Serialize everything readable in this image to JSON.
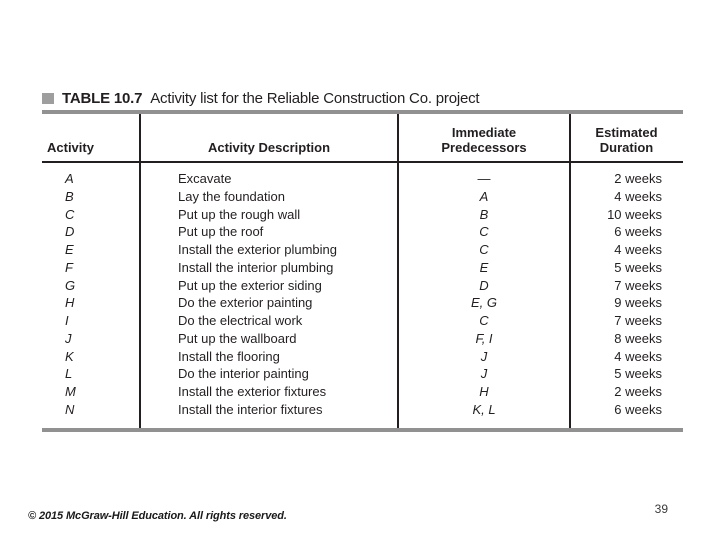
{
  "title": {
    "label": "TABLE 10.7",
    "caption": "Activity list for the Reliable Construction Co. project"
  },
  "columns": [
    {
      "key": "activity",
      "label": "Activity"
    },
    {
      "key": "description",
      "label": "Activity Description"
    },
    {
      "key": "predecessors",
      "label": "Immediate\nPredecessors"
    },
    {
      "key": "duration",
      "label": "Estimated\nDuration"
    }
  ],
  "rows": [
    {
      "activity": "A",
      "description": "Excavate",
      "predecessors": "—",
      "duration": "2 weeks"
    },
    {
      "activity": "B",
      "description": "Lay the foundation",
      "predecessors": "A",
      "duration": "4 weeks"
    },
    {
      "activity": "C",
      "description": "Put up the rough wall",
      "predecessors": "B",
      "duration": "10 weeks"
    },
    {
      "activity": "D",
      "description": "Put up the roof",
      "predecessors": "C",
      "duration": "6 weeks"
    },
    {
      "activity": "E",
      "description": "Install the exterior plumbing",
      "predecessors": "C",
      "duration": "4 weeks"
    },
    {
      "activity": "F",
      "description": "Install the interior plumbing",
      "predecessors": "E",
      "duration": "5 weeks"
    },
    {
      "activity": "G",
      "description": "Put up the exterior siding",
      "predecessors": "D",
      "duration": "7 weeks"
    },
    {
      "activity": "H",
      "description": "Do the exterior painting",
      "predecessors": "E, G",
      "duration": "9 weeks"
    },
    {
      "activity": "I",
      "description": "Do the electrical work",
      "predecessors": "C",
      "duration": "7 weeks"
    },
    {
      "activity": "J",
      "description": "Put up the wallboard",
      "predecessors": "F, I",
      "duration": "8 weeks"
    },
    {
      "activity": "K",
      "description": "Install the flooring",
      "predecessors": "J",
      "duration": "4 weeks"
    },
    {
      "activity": "L",
      "description": "Do the interior painting",
      "predecessors": "J",
      "duration": "5 weeks"
    },
    {
      "activity": "M",
      "description": "Install the exterior fixtures",
      "predecessors": "H",
      "duration": "2 weeks"
    },
    {
      "activity": "N",
      "description": "Install the interior fixtures",
      "predecessors": "K, L",
      "duration": "6 weeks"
    }
  ],
  "footer": {
    "copyright": "© 2015 McGraw-Hill Education. All rights reserved.",
    "page_number": "39"
  },
  "colors": {
    "rule_gray": "#919191",
    "line_black": "#231f20",
    "text": "#231f20"
  }
}
